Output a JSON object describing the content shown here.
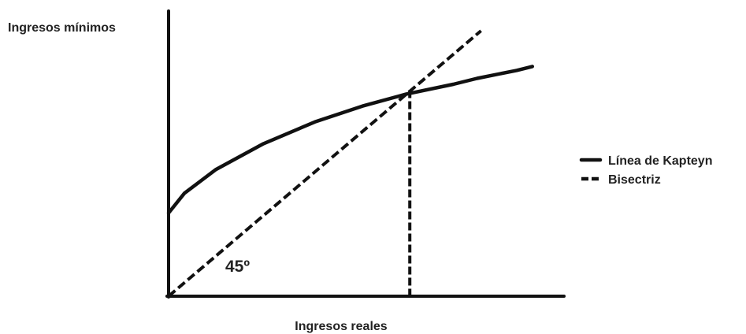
{
  "chart_data": {
    "type": "line",
    "title": "",
    "xlabel": "Ingresos reales",
    "ylabel": "Ingresos mínimos",
    "xlim": [
      0,
      100
    ],
    "ylim": [
      0,
      72
    ],
    "grid": false,
    "legend_position": "right",
    "angle_annotation": "45º",
    "series": [
      {
        "name": "Línea de Kapteyn",
        "style": "solid",
        "x": [
          0,
          4,
          12,
          24,
          37,
          49,
          60,
          72,
          78,
          88,
          92
        ],
        "y": [
          21,
          26,
          32,
          38.5,
          44,
          48,
          51,
          53.5,
          55,
          57,
          58
        ]
      },
      {
        "name": "Bisectriz",
        "style": "dashed",
        "x": [
          0,
          79
        ],
        "y": [
          0,
          67
        ]
      }
    ],
    "markers": [
      {
        "type": "vertical-dashed",
        "x": 61,
        "y": 52
      }
    ]
  },
  "colors": {
    "lines": "#111111",
    "text": "#222222",
    "background": "#ffffff"
  }
}
